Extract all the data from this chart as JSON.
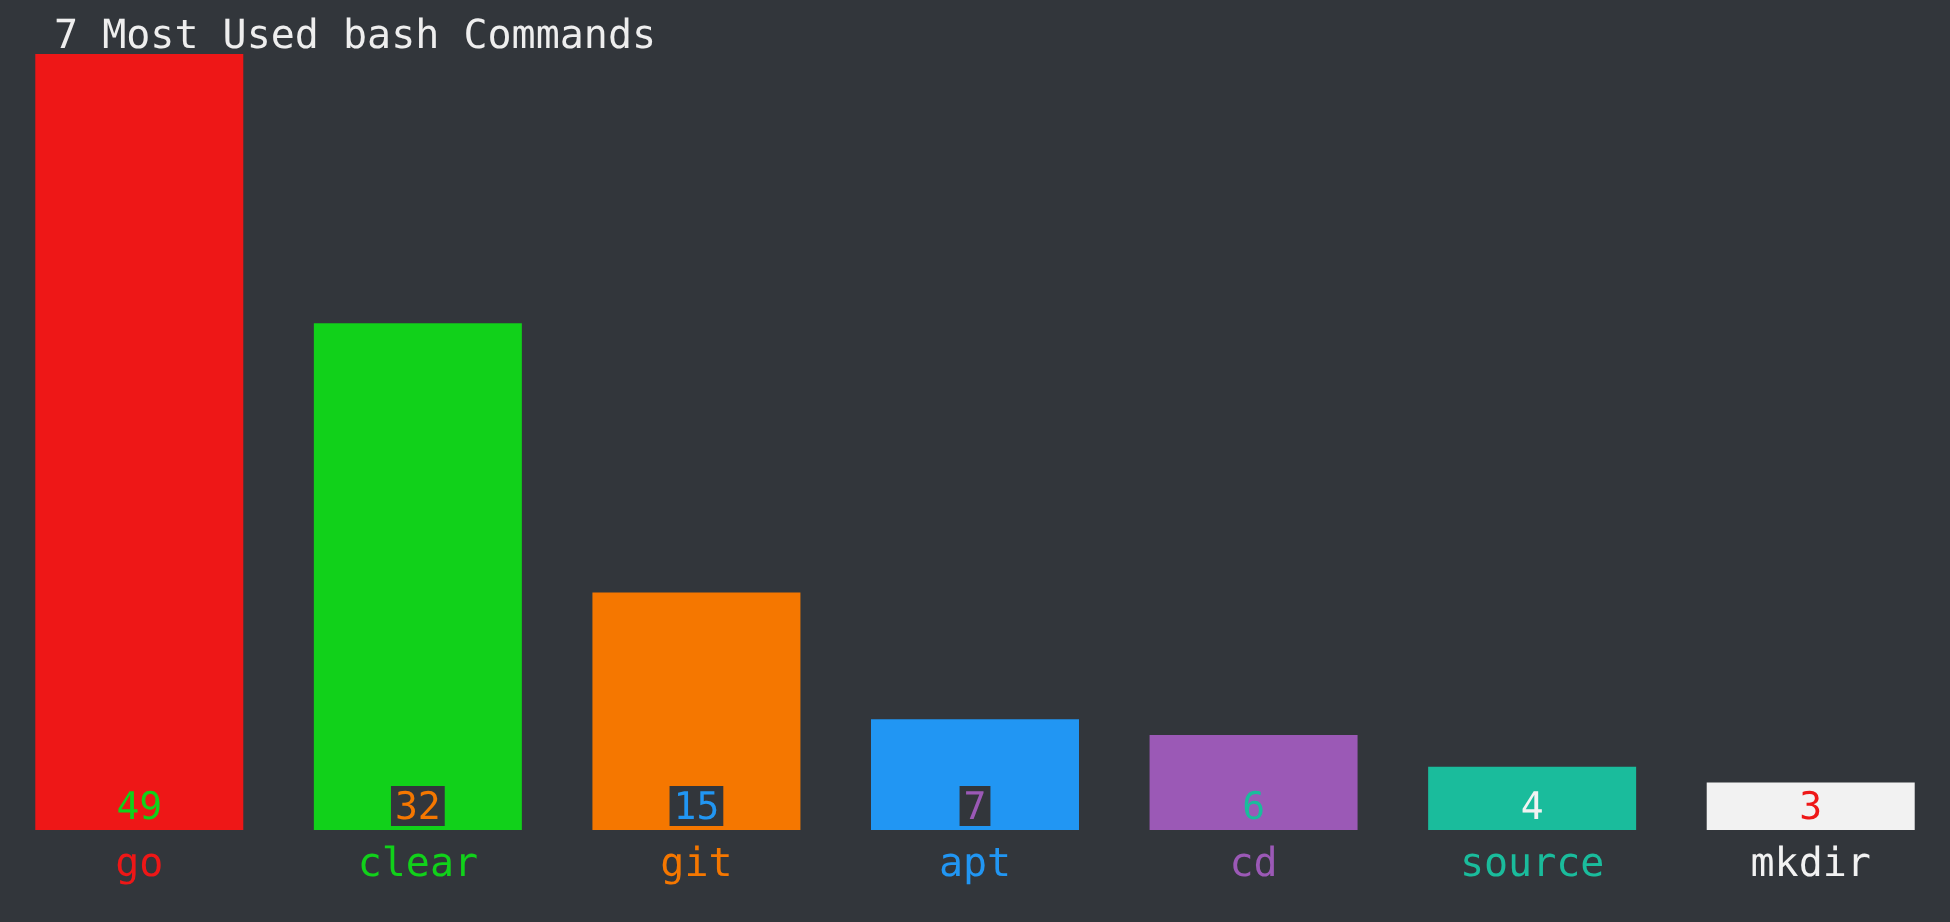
{
  "chart_data": {
    "type": "bar",
    "title": "7 Most Used bash Commands",
    "categories": [
      "go",
      "clear",
      "git",
      "apt",
      "cd",
      "source",
      "mkdir"
    ],
    "values": [
      49,
      32,
      15,
      7,
      6,
      4,
      3
    ],
    "colors": [
      "#ee1717",
      "#11d11a",
      "#f57700",
      "#2196f3",
      "#9b59b6",
      "#1abc9c",
      "#f2f2f2"
    ],
    "data_labels": true,
    "grid": false
  }
}
